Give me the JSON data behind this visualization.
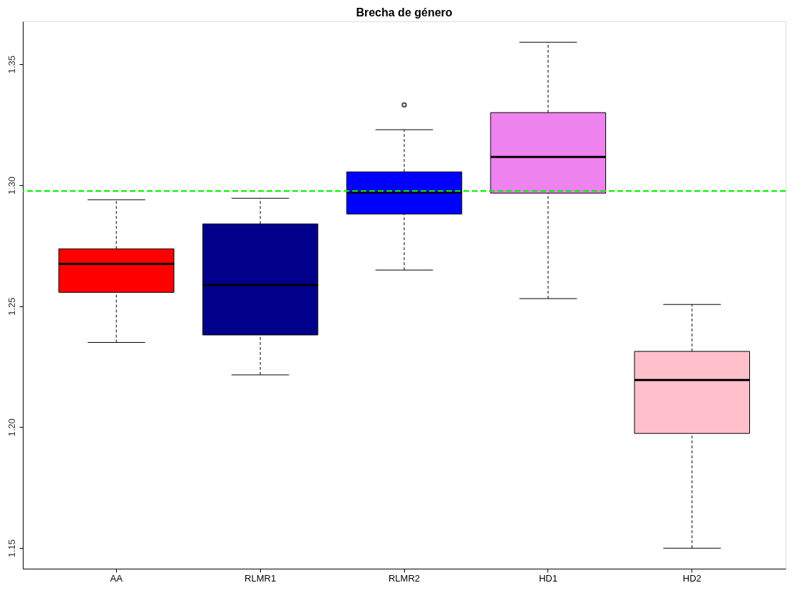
{
  "chart_data": {
    "type": "box",
    "title": "Brecha de género",
    "categories": [
      "AA",
      "RLMR1",
      "RLMR2",
      "HD1",
      "HD2"
    ],
    "boxes": [
      {
        "low": 1.235,
        "q1": 1.2557,
        "median": 1.2675,
        "q3": 1.2737,
        "high": 1.294
      },
      {
        "low": 1.2216,
        "q1": 1.2381,
        "median": 1.2587,
        "q3": 1.284,
        "high": 1.2946
      },
      {
        "low": 1.2649,
        "q1": 1.2881,
        "median": 1.297,
        "q3": 1.3055,
        "high": 1.3229,
        "outliers": [
          1.3332
        ]
      },
      {
        "low": 1.2531,
        "q1": 1.2967,
        "median": 1.3117,
        "q3": 1.33,
        "high": 1.3591
      },
      {
        "low": 1.15,
        "q1": 1.1974,
        "median": 1.2195,
        "q3": 1.2313,
        "high": 1.2507
      }
    ],
    "colors": [
      "#ff0000",
      "#00008b",
      "#0000ff",
      "#ee82ee",
      "#ffc0cb"
    ],
    "ylim": [
      1.1415,
      1.3677
    ],
    "yticks": [
      1.15,
      {
        "value": 1.2,
        "label": "1.20"
      },
      1.25,
      {
        "value": 1.3,
        "label": "1.30"
      },
      1.35
    ],
    "ref_lines": [
      {
        "axis": "y",
        "value": 1.2976,
        "color": "#00ee00",
        "line_style": "dashed"
      }
    ],
    "grid": false,
    "legend": false
  }
}
